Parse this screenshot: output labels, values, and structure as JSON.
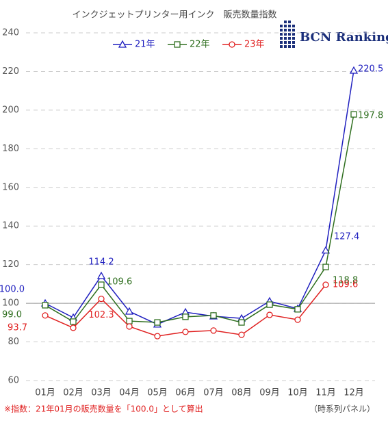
{
  "chart_data": {
    "type": "line",
    "title": "インクジェットプリンター用インク　販売数量指数",
    "brand": "BCN Ranking",
    "note": "※指数：21年01月の販売数量を「100.0」として算出",
    "source": "（時系列パネル）",
    "categories": [
      "01月",
      "02月",
      "03月",
      "04月",
      "05月",
      "06月",
      "07月",
      "08月",
      "09月",
      "10月",
      "11月",
      "12月"
    ],
    "series": [
      {
        "name": "21年",
        "color": "#1f1fbf",
        "marker": "triangle",
        "values": [
          100.0,
          92.6,
          114.2,
          95.8,
          89.1,
          95.4,
          93.3,
          92.2,
          101.1,
          97.2,
          127.4,
          220.5
        ],
        "value_labels": [
          "100.0",
          null,
          "114.2",
          null,
          null,
          null,
          null,
          null,
          null,
          null,
          "127.4",
          "220.5"
        ]
      },
      {
        "name": "22年",
        "color": "#2e6e1e",
        "marker": "square",
        "values": [
          99.0,
          90.5,
          109.6,
          90.8,
          90.1,
          93.0,
          93.7,
          90.1,
          99.3,
          96.9,
          118.8,
          197.8
        ],
        "value_labels": [
          "99.0",
          null,
          "109.6",
          null,
          null,
          null,
          null,
          null,
          null,
          null,
          "118.8",
          "197.8"
        ]
      },
      {
        "name": "23年",
        "color": "#e02020",
        "marker": "circle",
        "values": [
          93.7,
          87.3,
          102.3,
          88.0,
          83.0,
          85.2,
          85.9,
          83.7,
          94.0,
          91.5,
          109.6,
          null
        ],
        "value_labels": [
          "93.7",
          null,
          "102.3",
          null,
          null,
          null,
          null,
          null,
          null,
          null,
          "109.6",
          null
        ]
      }
    ],
    "ylim": [
      60,
      240
    ],
    "yticks": [
      60,
      80,
      100,
      120,
      140,
      160,
      180,
      200,
      220,
      240
    ],
    "grid": true,
    "reference_line": 100,
    "legend": "top"
  }
}
